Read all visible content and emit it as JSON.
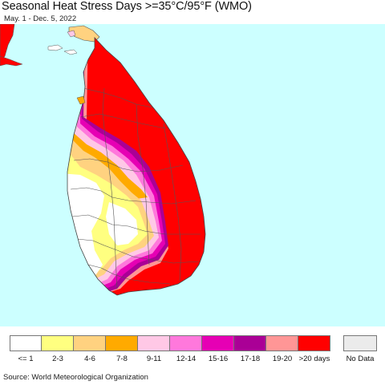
{
  "header": {
    "title": "Seasonal Heat Stress Days >=35°C/95°F (WMO)",
    "subtitle": "May. 1 - Dec. 5, 2022"
  },
  "map": {
    "region": "Sri Lanka",
    "ocean_color": "#ccffff",
    "boundary_color": "#555555"
  },
  "legend": {
    "items": [
      {
        "label": "<= 1",
        "color": "#ffffff"
      },
      {
        "label": "2-3",
        "color": "#ffff80"
      },
      {
        "label": "4-6",
        "color": "#ffd280"
      },
      {
        "label": "7-8",
        "color": "#ffaa00"
      },
      {
        "label": "9-11",
        "color": "#ffc8e6"
      },
      {
        "label": "12-14",
        "color": "#ff78dc"
      },
      {
        "label": "15-16",
        "color": "#e600b4"
      },
      {
        "label": "17-18",
        "color": "#aa0096"
      },
      {
        "label": "19-20",
        "color": "#ff9696"
      },
      {
        "label": ">20 days",
        "color": "#ff0000"
      }
    ],
    "no_data": {
      "label": "No Data",
      "color": "#ebebeb"
    }
  },
  "footer": {
    "source": "Source: World Meteorological Organization"
  }
}
